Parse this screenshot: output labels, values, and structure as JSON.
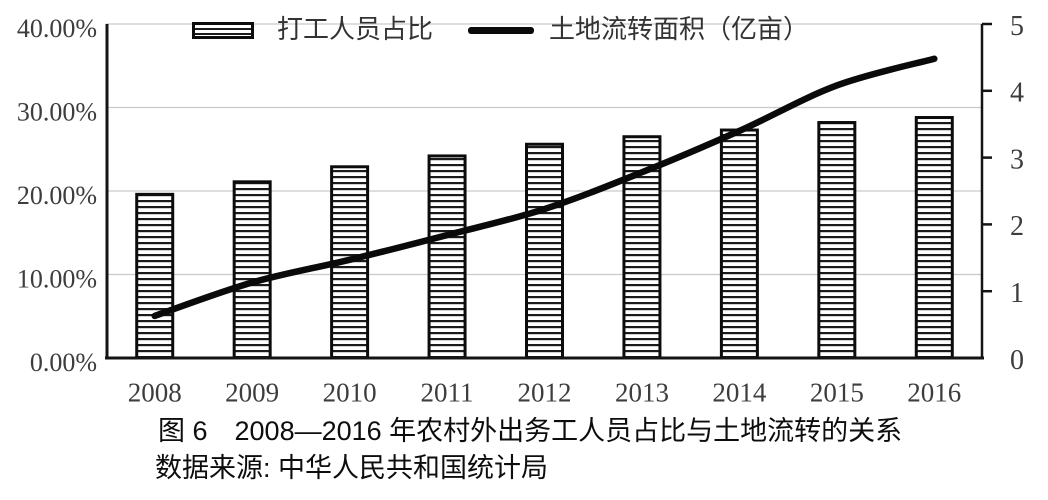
{
  "figure": {
    "caption_line1": "图 6　2008—2016 年农村外出务工人员占比与土地流转的关系",
    "caption_line2": "数据来源: 中华人民共和国统计局"
  },
  "legend": {
    "bar_label": "打工人员占比",
    "line_label": "土地流转面积（亿亩）"
  },
  "chart_data": {
    "type": "bar+line combo",
    "categories": [
      "2008",
      "2009",
      "2010",
      "2011",
      "2012",
      "2013",
      "2014",
      "2015",
      "2016"
    ],
    "series": [
      {
        "name": "打工人员占比",
        "type": "bar",
        "axis": "left",
        "unit": "%",
        "values": [
          19.6,
          21.1,
          22.9,
          24.2,
          25.6,
          26.5,
          27.3,
          28.2,
          28.8
        ]
      },
      {
        "name": "土地流转面积（亿亩）",
        "type": "line",
        "axis": "right",
        "unit": "亿亩",
        "values": [
          0.63,
          1.13,
          1.47,
          1.84,
          2.23,
          2.78,
          3.4,
          4.08,
          4.48
        ]
      }
    ],
    "left_axis": {
      "min": 0,
      "max": 40,
      "tick_values": [
        0,
        10,
        20,
        30,
        40
      ],
      "tick_labels": [
        "0.00%",
        "10.00%",
        "20.00%",
        "30.00%",
        "40.00%"
      ]
    },
    "right_axis": {
      "min": 0,
      "max": 5,
      "tick_values": [
        0,
        1,
        2,
        3,
        4,
        5
      ],
      "tick_labels": [
        "0",
        "1",
        "2",
        "3",
        "4",
        "5"
      ]
    },
    "grid": "horizontal gridlines at left-axis ticks",
    "legend_position": "top",
    "colors": {
      "bar_fill": "#ffffff",
      "bar_hatch": "#1a1a1a",
      "bar_border": "#0c0c0c",
      "line": "#0a0a0a",
      "grid": "#c9c9c9",
      "axis": "#141414",
      "tick_text": "#3d3d3d"
    }
  }
}
